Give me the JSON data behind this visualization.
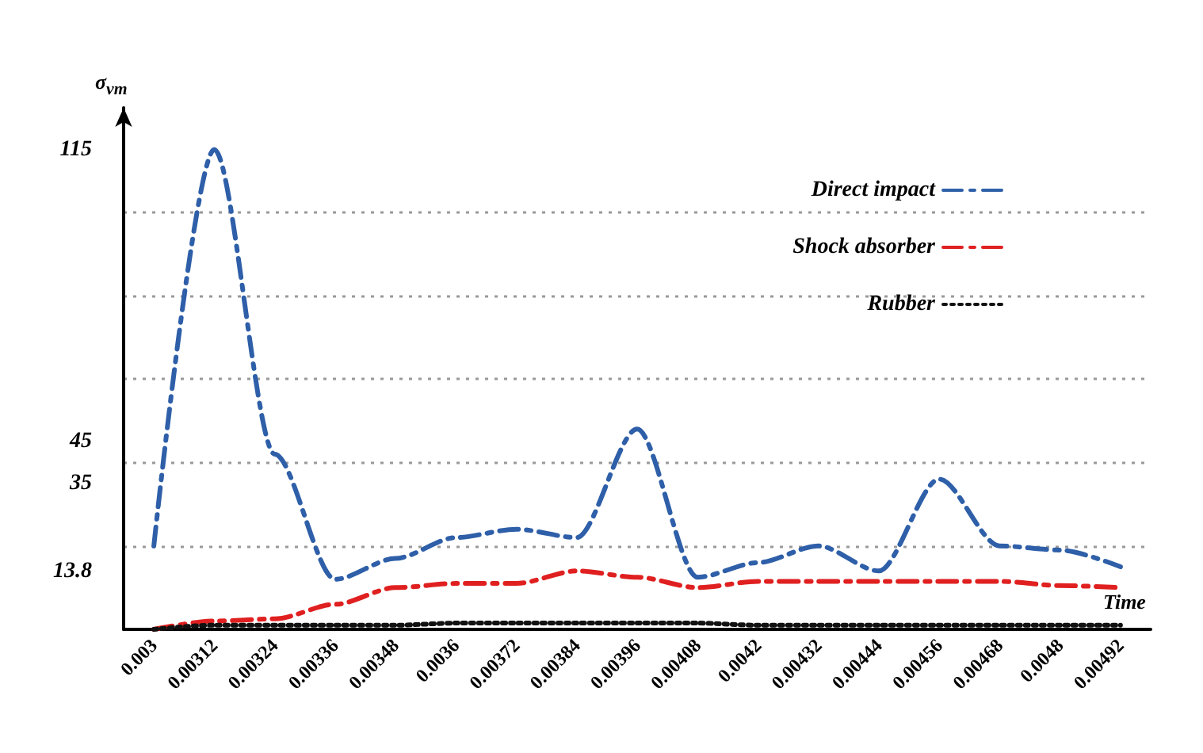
{
  "chart_data": {
    "type": "line",
    "xlabel": "Time",
    "ylabel": "σ$_{vm}$",
    "categories": [
      "0.003",
      "0.00312",
      "0.00324",
      "0.00336",
      "0.00348",
      "0.0036",
      "0.00372",
      "0.00384",
      "0.00396",
      "0.00408",
      "0.0042",
      "0.00432",
      "0.00444",
      "0.00456",
      "0.00468",
      "0.0048",
      "0.00492"
    ],
    "ylim": [
      0,
      125
    ],
    "yticks": [
      13.8,
      {
        "value": 20,
        "label": null
      },
      35,
      {
        "value": 40,
        "label": null
      },
      45,
      {
        "value": 60,
        "label": null
      },
      {
        "value": 80,
        "label": null
      },
      {
        "value": 100,
        "label": null
      },
      115
    ],
    "grid": "y",
    "legend": "top right",
    "marker": "none",
    "series": [
      {
        "name": "Direct impact",
        "color": "#2e5fa8",
        "line_style": "dashed",
        "values": [
          20,
          115,
          42,
          12,
          17,
          22,
          24,
          22,
          48,
          12.5,
          16,
          20,
          14,
          36,
          20,
          19,
          15
        ]
      },
      {
        "name": "Shock absorber",
        "color": "#e02020",
        "line_style": "dashed",
        "values": [
          0,
          2,
          2.5,
          6,
          10,
          11,
          11,
          14,
          12.5,
          10,
          11.5,
          11.5,
          11.5,
          11.5,
          11.5,
          10.5,
          10
        ]
      },
      {
        "name": "Rubber",
        "color": "#111111",
        "line_style": "dotted",
        "values": [
          0,
          1,
          1,
          1,
          1,
          1.5,
          1.5,
          1.5,
          1.5,
          1.5,
          1,
          1,
          1,
          1,
          1,
          1,
          1
        ]
      }
    ]
  }
}
